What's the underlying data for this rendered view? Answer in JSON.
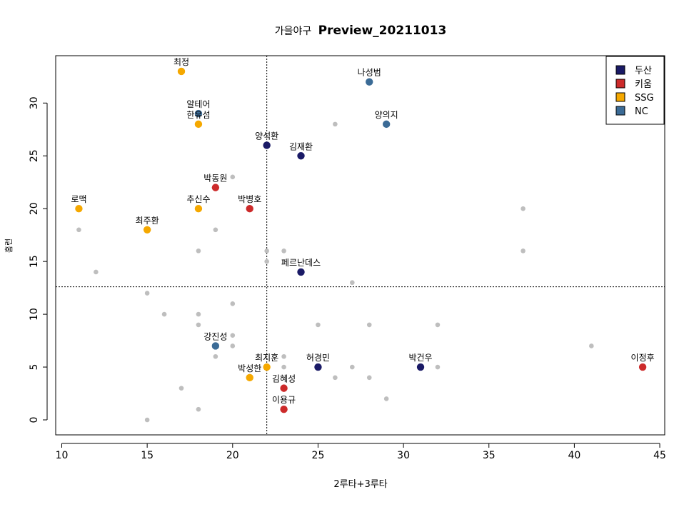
{
  "chart_data": {
    "type": "scatter",
    "title_prefix": "가을야구",
    "title_main": "Preview_20211013",
    "xlabel": "2루타+3루타",
    "ylabel": "홈런",
    "xlim": [
      10,
      45
    ],
    "ylim": [
      0,
      33
    ],
    "x_ticks": [
      10,
      15,
      20,
      25,
      30,
      35,
      40,
      45
    ],
    "y_ticks": [
      0,
      5,
      10,
      15,
      20,
      25,
      30
    ],
    "ref_lines": {
      "vline_x": 22,
      "hline_y": 12.6
    },
    "background_points": [
      [
        11,
        18
      ],
      [
        12,
        14
      ],
      [
        15,
        12
      ],
      [
        15,
        0
      ],
      [
        16,
        10
      ],
      [
        17,
        3
      ],
      [
        18,
        16
      ],
      [
        18,
        10
      ],
      [
        18,
        9
      ],
      [
        18,
        1
      ],
      [
        19,
        18
      ],
      [
        19,
        6
      ],
      [
        20,
        23
      ],
      [
        20,
        11
      ],
      [
        20,
        8
      ],
      [
        20,
        7
      ],
      [
        22,
        16
      ],
      [
        22,
        15
      ],
      [
        23,
        16
      ],
      [
        23,
        6
      ],
      [
        23,
        5
      ],
      [
        25,
        9
      ],
      [
        26,
        28
      ],
      [
        26,
        4
      ],
      [
        27,
        13
      ],
      [
        27,
        5
      ],
      [
        28,
        9
      ],
      [
        28,
        4
      ],
      [
        29,
        2
      ],
      [
        32,
        9
      ],
      [
        32,
        5
      ],
      [
        37,
        20
      ],
      [
        37,
        16
      ],
      [
        41,
        7
      ]
    ],
    "background_color": "#bebebe",
    "legend": {
      "position": "top-right",
      "entries": [
        {
          "name": "두산",
          "color": "#1a1a66"
        },
        {
          "name": "키움",
          "color": "#cc2a2a"
        },
        {
          "name": "SSG",
          "color": "#f5a800"
        },
        {
          "name": "NC",
          "color": "#3b6b96"
        }
      ]
    },
    "players": [
      {
        "name": "최정",
        "x": 17,
        "y": 33,
        "team": "SSG",
        "color": "#f5a800"
      },
      {
        "name": "나성범",
        "x": 28,
        "y": 32,
        "team": "NC",
        "color": "#3b6b96"
      },
      {
        "name": "알테어",
        "x": 18,
        "y": 29,
        "team": "NC",
        "color": "#3b6b96"
      },
      {
        "name": "한유섬",
        "x": 18,
        "y": 28,
        "team": "SSG",
        "color": "#f5a800"
      },
      {
        "name": "양의지",
        "x": 29,
        "y": 28,
        "team": "NC",
        "color": "#3b6b96"
      },
      {
        "name": "양석환",
        "x": 22,
        "y": 26,
        "team": "두산",
        "color": "#1a1a66"
      },
      {
        "name": "김재환",
        "x": 24,
        "y": 25,
        "team": "두산",
        "color": "#1a1a66"
      },
      {
        "name": "박동원",
        "x": 19,
        "y": 22,
        "team": "키움",
        "color": "#cc2a2a"
      },
      {
        "name": "로맥",
        "x": 11,
        "y": 20,
        "team": "SSG",
        "color": "#f5a800"
      },
      {
        "name": "추신수",
        "x": 18,
        "y": 20,
        "team": "SSG",
        "color": "#f5a800"
      },
      {
        "name": "박병호",
        "x": 21,
        "y": 20,
        "team": "키움",
        "color": "#cc2a2a"
      },
      {
        "name": "최주환",
        "x": 15,
        "y": 18,
        "team": "SSG",
        "color": "#f5a800"
      },
      {
        "name": "페르난데스",
        "x": 24,
        "y": 14,
        "team": "두산",
        "color": "#1a1a66"
      },
      {
        "name": "강진성",
        "x": 19,
        "y": 7,
        "team": "NC",
        "color": "#3b6b96"
      },
      {
        "name": "최지훈",
        "x": 22,
        "y": 5,
        "team": "SSG",
        "color": "#f5a800"
      },
      {
        "name": "허경민",
        "x": 25,
        "y": 5,
        "team": "두산",
        "color": "#1a1a66"
      },
      {
        "name": "박건우",
        "x": 31,
        "y": 5,
        "team": "두산",
        "color": "#1a1a66"
      },
      {
        "name": "이정후",
        "x": 44,
        "y": 5,
        "team": "키움",
        "color": "#cc2a2a"
      },
      {
        "name": "박성한",
        "x": 21,
        "y": 4,
        "team": "SSG",
        "color": "#f5a800"
      },
      {
        "name": "김혜성",
        "x": 23,
        "y": 3,
        "team": "키움",
        "color": "#cc2a2a"
      },
      {
        "name": "이용규",
        "x": 23,
        "y": 1,
        "team": "키움",
        "color": "#cc2a2a"
      }
    ]
  }
}
